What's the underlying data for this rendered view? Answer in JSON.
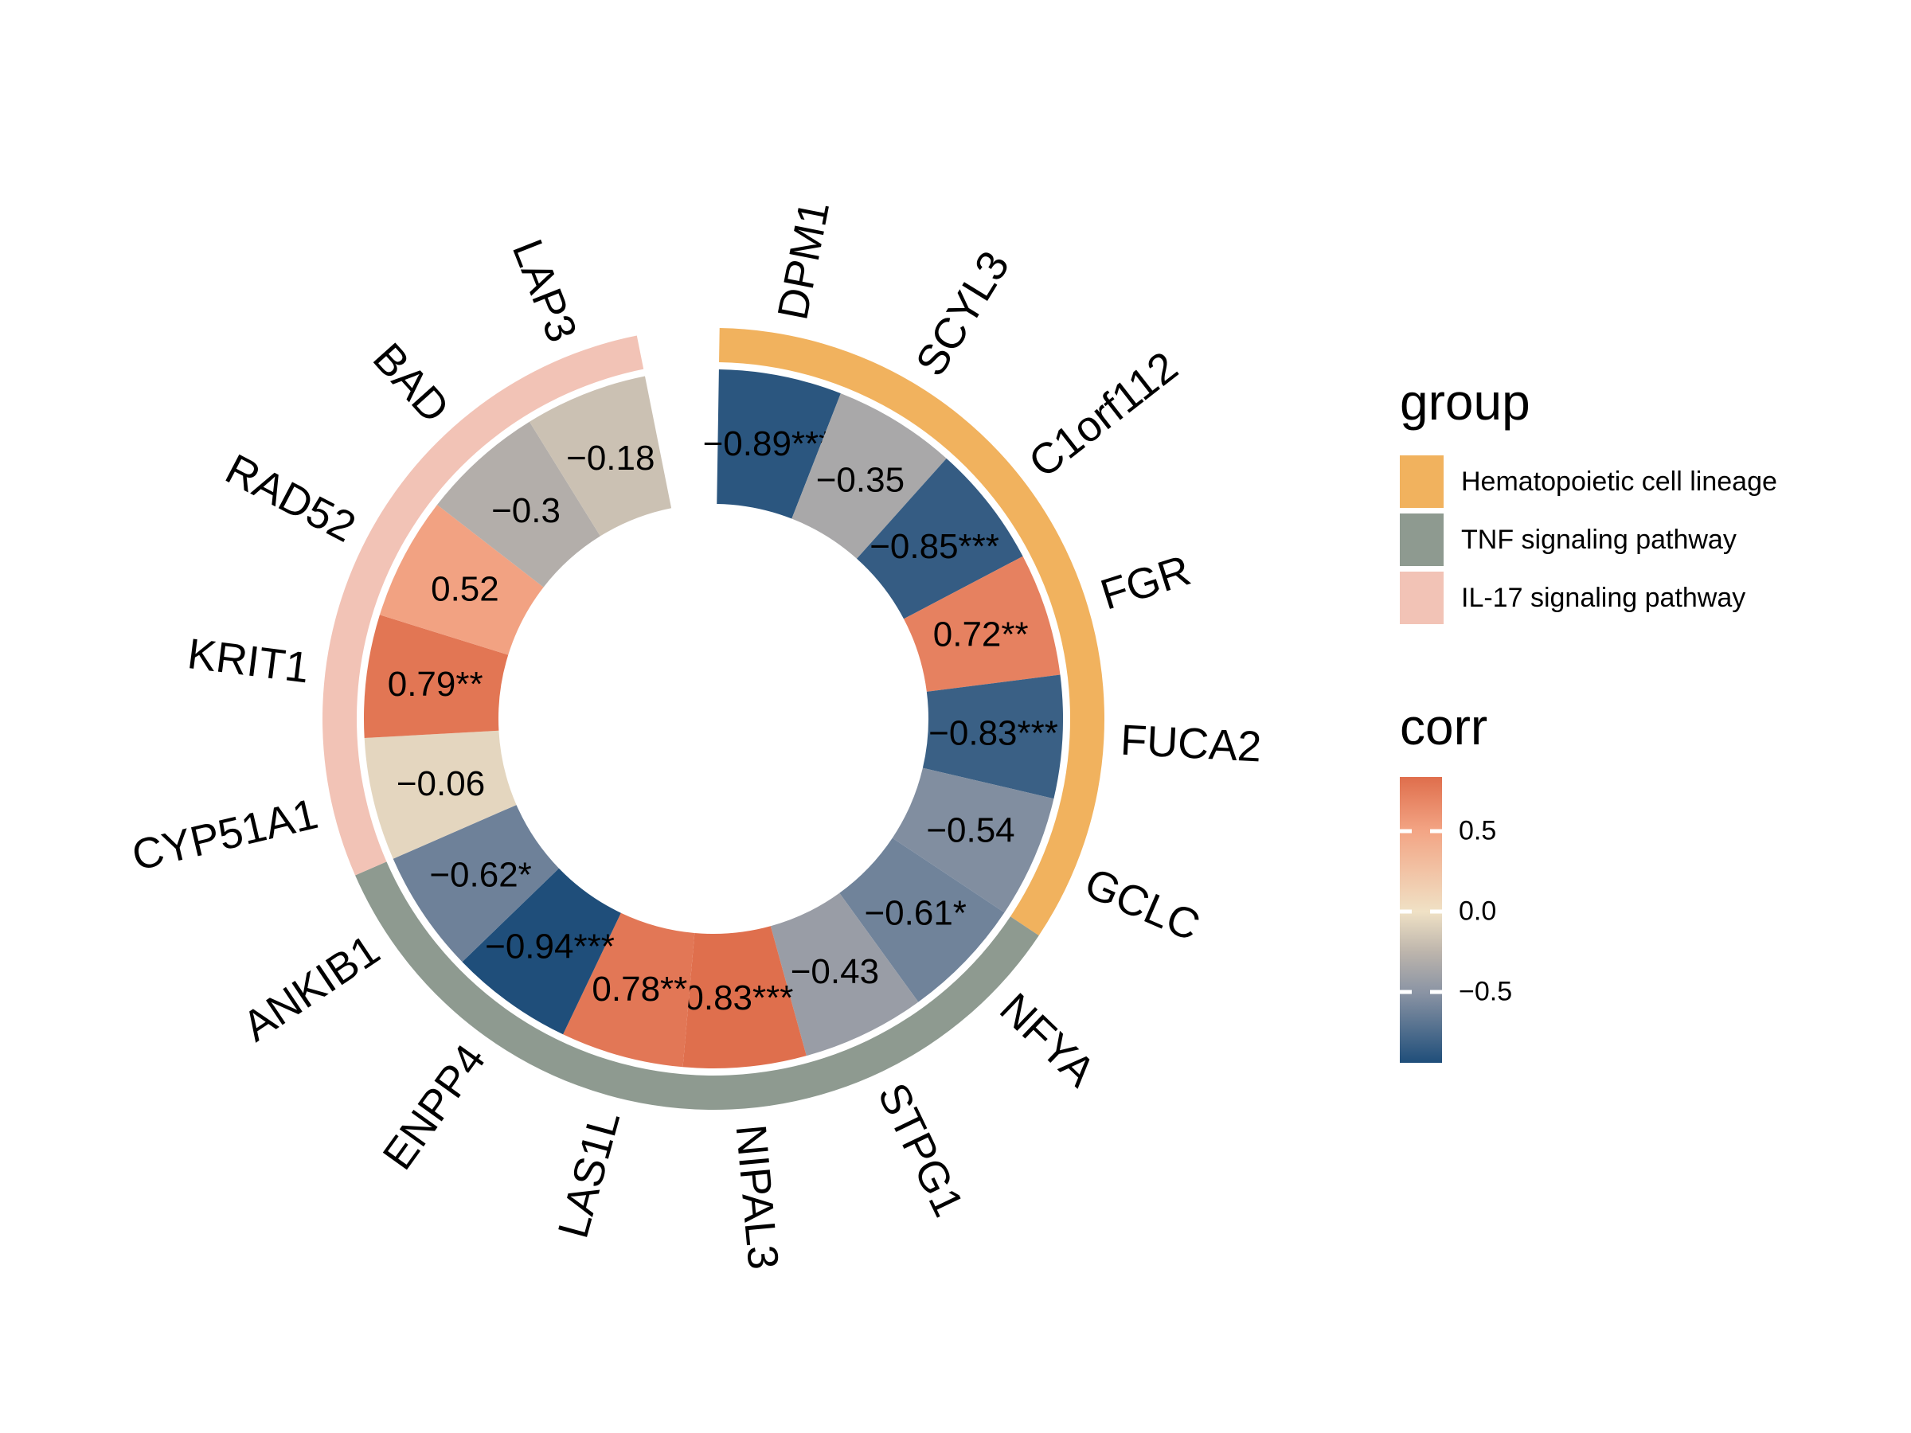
{
  "chart_data": {
    "type": "heatmap",
    "layout": {
      "shape": "circular-donut",
      "direction": "clockwise",
      "start_degree_from_top": 0.9,
      "top_gap_degree": 12.2,
      "grid": "off",
      "legend_position": "right"
    },
    "title": "",
    "genes": [
      {
        "name": "DPM1",
        "corr": -0.89,
        "label": "−0.89***",
        "group": "Hematopoietic cell lineage"
      },
      {
        "name": "SCYL3",
        "corr": -0.35,
        "label": "−0.35",
        "group": "Hematopoietic cell lineage"
      },
      {
        "name": "C1orf112",
        "corr": -0.85,
        "label": "−0.85***",
        "group": "Hematopoietic cell lineage"
      },
      {
        "name": "FGR",
        "corr": 0.72,
        "label": "0.72**",
        "group": "Hematopoietic cell lineage"
      },
      {
        "name": "FUCA2",
        "corr": -0.83,
        "label": "−0.83***",
        "group": "Hematopoietic cell lineage"
      },
      {
        "name": "GCLC",
        "corr": -0.54,
        "label": "−0.54",
        "group": "Hematopoietic cell lineage"
      },
      {
        "name": "NFYA",
        "corr": -0.61,
        "label": "−0.61*",
        "group": "TNF signaling pathway"
      },
      {
        "name": "STPG1",
        "corr": -0.43,
        "label": "−0.43",
        "group": "TNF signaling pathway"
      },
      {
        "name": "NIPAL3",
        "corr": 0.83,
        "label": "0.83***",
        "group": "TNF signaling pathway"
      },
      {
        "name": "LAS1L",
        "corr": 0.78,
        "label": "0.78**",
        "group": "TNF signaling pathway"
      },
      {
        "name": "ENPP4",
        "corr": -0.94,
        "label": "−0.94***",
        "group": "TNF signaling pathway"
      },
      {
        "name": "ANKIB1",
        "corr": -0.62,
        "label": "−0.62*",
        "group": "TNF signaling pathway"
      },
      {
        "name": "CYP51A1",
        "corr": -0.06,
        "label": "−0.06",
        "group": "IL-17 signaling pathway"
      },
      {
        "name": "KRIT1",
        "corr": 0.79,
        "label": "0.79**",
        "group": "IL-17 signaling pathway"
      },
      {
        "name": "RAD52",
        "corr": 0.52,
        "label": "0.52",
        "group": "IL-17 signaling pathway"
      },
      {
        "name": "BAD",
        "corr": -0.3,
        "label": "−0.3",
        "group": "IL-17 signaling pathway"
      },
      {
        "name": "LAP3",
        "corr": -0.18,
        "label": "−0.18",
        "group": "IL-17 signaling pathway"
      }
    ],
    "group_legend": {
      "title": "group",
      "items": [
        {
          "label": "Hematopoietic cell lineage",
          "color": "#F1B25E"
        },
        {
          "label": "TNF signaling pathway",
          "color": "#8E9A90"
        },
        {
          "label": "IL-17 signaling pathway",
          "color": "#F2C3B6"
        }
      ]
    },
    "corr_legend": {
      "title": "corr",
      "domain": [
        -0.94,
        0.837
      ],
      "ticks": [
        {
          "value": 0.5,
          "label": "0.5"
        },
        {
          "value": 0.0,
          "label": "0.0"
        },
        {
          "value": -0.5,
          "label": "−0.5"
        }
      ],
      "gradient_stops": [
        {
          "value": -0.94,
          "color": "#1F4E7A"
        },
        {
          "value": -0.5,
          "color": "#8B94A4"
        },
        {
          "value": -0.25,
          "color": "#BDB5AC"
        },
        {
          "value": 0.0,
          "color": "#F0E1C5"
        },
        {
          "value": 0.5,
          "color": "#F3A585"
        },
        {
          "value": 0.837,
          "color": "#DF6E4C"
        }
      ]
    }
  }
}
